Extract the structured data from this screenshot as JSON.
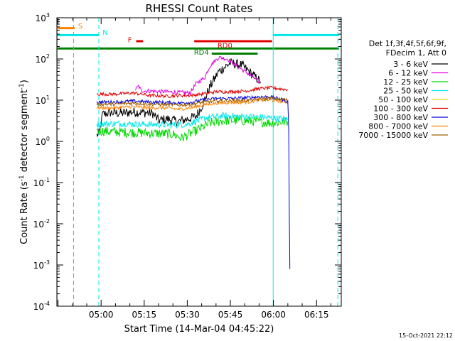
{
  "chart_data": {
    "type": "line",
    "title": "RHESSI Count Rates",
    "xlabel": "Start Time (14-Mar-04 04:45:22)",
    "ylabel": "Count Rate (s-1 detector segment-1)",
    "ylabel_parts": {
      "main": "Count Rate (s",
      "sup1": "-1",
      "mid": " detector segment",
      "sup2": "-1",
      "end": ")"
    },
    "yscale": "log",
    "ylim": [
      0.0001,
      1000
    ],
    "xlim_minutes": [
      -0.4,
      98.6
    ],
    "x_tick_labels": [
      "05:00",
      "05:15",
      "05:30",
      "05:45",
      "06:00",
      "06:15"
    ],
    "x_tick_minutes": [
      15,
      30,
      45,
      60,
      75,
      90
    ],
    "y_tick_labels": [
      {
        "base": "10",
        "exp": "-4",
        "v": 0.0001
      },
      {
        "base": "10",
        "exp": "-3",
        "v": 0.001
      },
      {
        "base": "10",
        "exp": "-2",
        "v": 0.01
      },
      {
        "base": "10",
        "exp": "-1",
        "v": 0.1
      },
      {
        "base": "10",
        "exp": "0",
        "v": 1
      },
      {
        "base": "10",
        "exp": "1",
        "v": 10
      },
      {
        "base": "10",
        "exp": "2",
        "v": 100
      },
      {
        "base": "10",
        "exp": "3",
        "v": 1000
      }
    ],
    "legend": {
      "placement": "right",
      "header": [
        "Det 1f,3f,4f,5f,6f,9f,",
        "FDecim 1, Att 0"
      ],
      "entries": [
        {
          "label": "3 - 6 keV",
          "color": "#000000"
        },
        {
          "label": "6 - 12 keV",
          "color": "#e100e1"
        },
        {
          "label": "12 - 25 keV",
          "color": "#00d800"
        },
        {
          "label": "25 - 50 keV",
          "color": "#00e8e8"
        },
        {
          "label": "50 - 100 keV",
          "color": "#e8d800"
        },
        {
          "label": "100 - 300 keV",
          "color": "#e00000"
        },
        {
          "label": "300 - 800 keV",
          "color": "#0000e0"
        },
        {
          "label": "800 - 7000 keV",
          "color": "#ff8000"
        },
        {
          "label": "7000 - 15000 keV",
          "color": "#a06000"
        }
      ]
    },
    "series": [
      {
        "name": "3 - 6 keV",
        "color": "#000000",
        "noise": 0.12,
        "points": [
          [
            13.5,
            1.4
          ],
          [
            14.5,
            1.6
          ],
          [
            15.5,
            4.5
          ],
          [
            18,
            5.0
          ],
          [
            22,
            4.8
          ],
          [
            26,
            5.2
          ],
          [
            30,
            5.0
          ],
          [
            33,
            4.8
          ],
          [
            35,
            3.2
          ],
          [
            38,
            3.5
          ],
          [
            42,
            3.0
          ],
          [
            45,
            3.5
          ],
          [
            48,
            4.0
          ],
          [
            50,
            7.0
          ],
          [
            53,
            22
          ],
          [
            56,
            50
          ],
          [
            60,
            80
          ],
          [
            64,
            70
          ],
          [
            68,
            40
          ],
          [
            70.5,
            28
          ]
        ]
      },
      {
        "name": "6 - 12 keV",
        "color": "#e100e1",
        "noise": 0.05,
        "points": [
          [
            27,
            18
          ],
          [
            28,
            22
          ],
          [
            29,
            17
          ],
          [
            46,
            15
          ],
          [
            48,
            25
          ],
          [
            51,
            35
          ],
          [
            53,
            70
          ],
          [
            56,
            110
          ],
          [
            59,
            100
          ],
          [
            62,
            70
          ],
          [
            66,
            45
          ],
          [
            70,
            28
          ]
        ]
      },
      {
        "name": "12 - 25 keV",
        "color": "#00d800",
        "noise": 0.12,
        "points": [
          [
            13.5,
            1.8
          ],
          [
            20,
            1.7
          ],
          [
            30,
            1.6
          ],
          [
            40,
            1.5
          ],
          [
            43,
            1.2
          ],
          [
            48,
            1.8
          ],
          [
            53,
            2.8
          ],
          [
            58,
            3.2
          ],
          [
            64,
            3.2
          ],
          [
            70,
            3.0
          ],
          [
            74,
            2.8
          ],
          [
            80,
            3.0
          ]
        ]
      },
      {
        "name": "25 - 50 keV",
        "color": "#00e8e8",
        "noise": 0.08,
        "points": [
          [
            13.5,
            2.6
          ],
          [
            20,
            2.7
          ],
          [
            30,
            2.6
          ],
          [
            40,
            2.5
          ],
          [
            45,
            2.6
          ],
          [
            52,
            3.8
          ],
          [
            58,
            4.2
          ],
          [
            64,
            4.0
          ],
          [
            70,
            3.9
          ],
          [
            76,
            3.6
          ],
          [
            80,
            3.4
          ]
        ]
      },
      {
        "name": "100 - 300 keV",
        "color": "#e00000",
        "noise": 0.04,
        "points": [
          [
            13.5,
            14
          ],
          [
            20,
            14
          ],
          [
            26,
            15
          ],
          [
            32,
            13
          ],
          [
            38,
            12.5
          ],
          [
            42,
            13
          ],
          [
            46,
            13
          ],
          [
            50,
            14
          ],
          [
            55,
            16
          ],
          [
            60,
            16
          ],
          [
            66,
            17
          ],
          [
            70,
            19
          ],
          [
            74,
            20
          ],
          [
            80,
            18
          ]
        ]
      },
      {
        "name": "800 - 7000 keV",
        "color": "#ff8000",
        "noise": 0.04,
        "points": [
          [
            13.5,
            6.5
          ],
          [
            20,
            6.5
          ],
          [
            26,
            7
          ],
          [
            32,
            6.5
          ],
          [
            38,
            6.5
          ],
          [
            42,
            6.0
          ],
          [
            46,
            6.5
          ],
          [
            50,
            7.5
          ],
          [
            55,
            8.5
          ],
          [
            60,
            8.8
          ],
          [
            66,
            9
          ],
          [
            70,
            10
          ],
          [
            74,
            10
          ],
          [
            80,
            9
          ]
        ]
      },
      {
        "name": "300 - 800 keV",
        "color": "#0000e0",
        "noise": 0.04,
        "points": [
          [
            13.5,
            9
          ],
          [
            20,
            9
          ],
          [
            26,
            9.5
          ],
          [
            32,
            9
          ],
          [
            38,
            8.8
          ],
          [
            42,
            8.5
          ],
          [
            46,
            8.8
          ],
          [
            50,
            10
          ],
          [
            55,
            11
          ],
          [
            60,
            11
          ],
          [
            66,
            11.5
          ],
          [
            70,
            12
          ],
          [
            74,
            12
          ],
          [
            79,
            10
          ],
          [
            80,
            9
          ],
          [
            80.3,
            2
          ],
          [
            80.5,
            0.02
          ],
          [
            80.7,
            0.0008
          ]
        ]
      },
      {
        "name": "7000 - 15000 keV",
        "color": "#a06000",
        "noise": 0.04,
        "points": [
          [
            13.5,
            8
          ],
          [
            20,
            8
          ],
          [
            26,
            8.5
          ],
          [
            32,
            8
          ],
          [
            38,
            7.8
          ],
          [
            42,
            7.6
          ],
          [
            46,
            7.8
          ],
          [
            50,
            8.8
          ],
          [
            55,
            9.5
          ],
          [
            60,
            9.8
          ],
          [
            66,
            10
          ],
          [
            70,
            10.5
          ],
          [
            74,
            11
          ],
          [
            80,
            10
          ]
        ]
      }
    ],
    "status_bars": [
      {
        "label": "S",
        "color": "#ff8000",
        "x0": 0,
        "x1": 5.8,
        "yv": 560,
        "label_x": 7,
        "label_y": 650
      },
      {
        "label": "N",
        "color": "#00e8e8",
        "x0": -0.4,
        "x1": 14.3,
        "yv": 380,
        "label_x": 15.5,
        "label_y": 450
      },
      {
        "label": "",
        "color": "#00e8e8",
        "x0": 74.8,
        "x1": 97.8,
        "yv": 380
      },
      {
        "label": "",
        "color": "#008000",
        "x0": -0.4,
        "x1": 97.8,
        "yv": 180
      },
      {
        "label": "F",
        "color": "#e00000",
        "x0": 27.2,
        "x1": 29.6,
        "yv": 270,
        "label_x": 24.3,
        "label_y": 300
      },
      {
        "label": "RD0",
        "color": "#e00000",
        "x0": 47.4,
        "x1": 74.5,
        "yv": 270,
        "label_x": 55.5,
        "label_y": 215
      },
      {
        "label": "RD4",
        "color": "#008000",
        "x0": 53.5,
        "x1": 69.5,
        "yv": 135,
        "label_x": 47.3,
        "label_y": 150
      }
    ],
    "vlines": [
      {
        "x": 5.4,
        "color": "#ff8000",
        "style": "dashed"
      },
      {
        "x": 14.2,
        "color": "#00e8e8",
        "style": "dashed"
      },
      {
        "x": 74.9,
        "color": "#00e8e8",
        "style": "solid"
      },
      {
        "x": 97.4,
        "color": "#00e8e8",
        "style": "dashed"
      },
      {
        "x": -0.3,
        "color": "#00e8e8",
        "style": "solid"
      }
    ],
    "grid": false
  },
  "footer": {
    "timestamp": "15-Oct-2021 22:12"
  }
}
